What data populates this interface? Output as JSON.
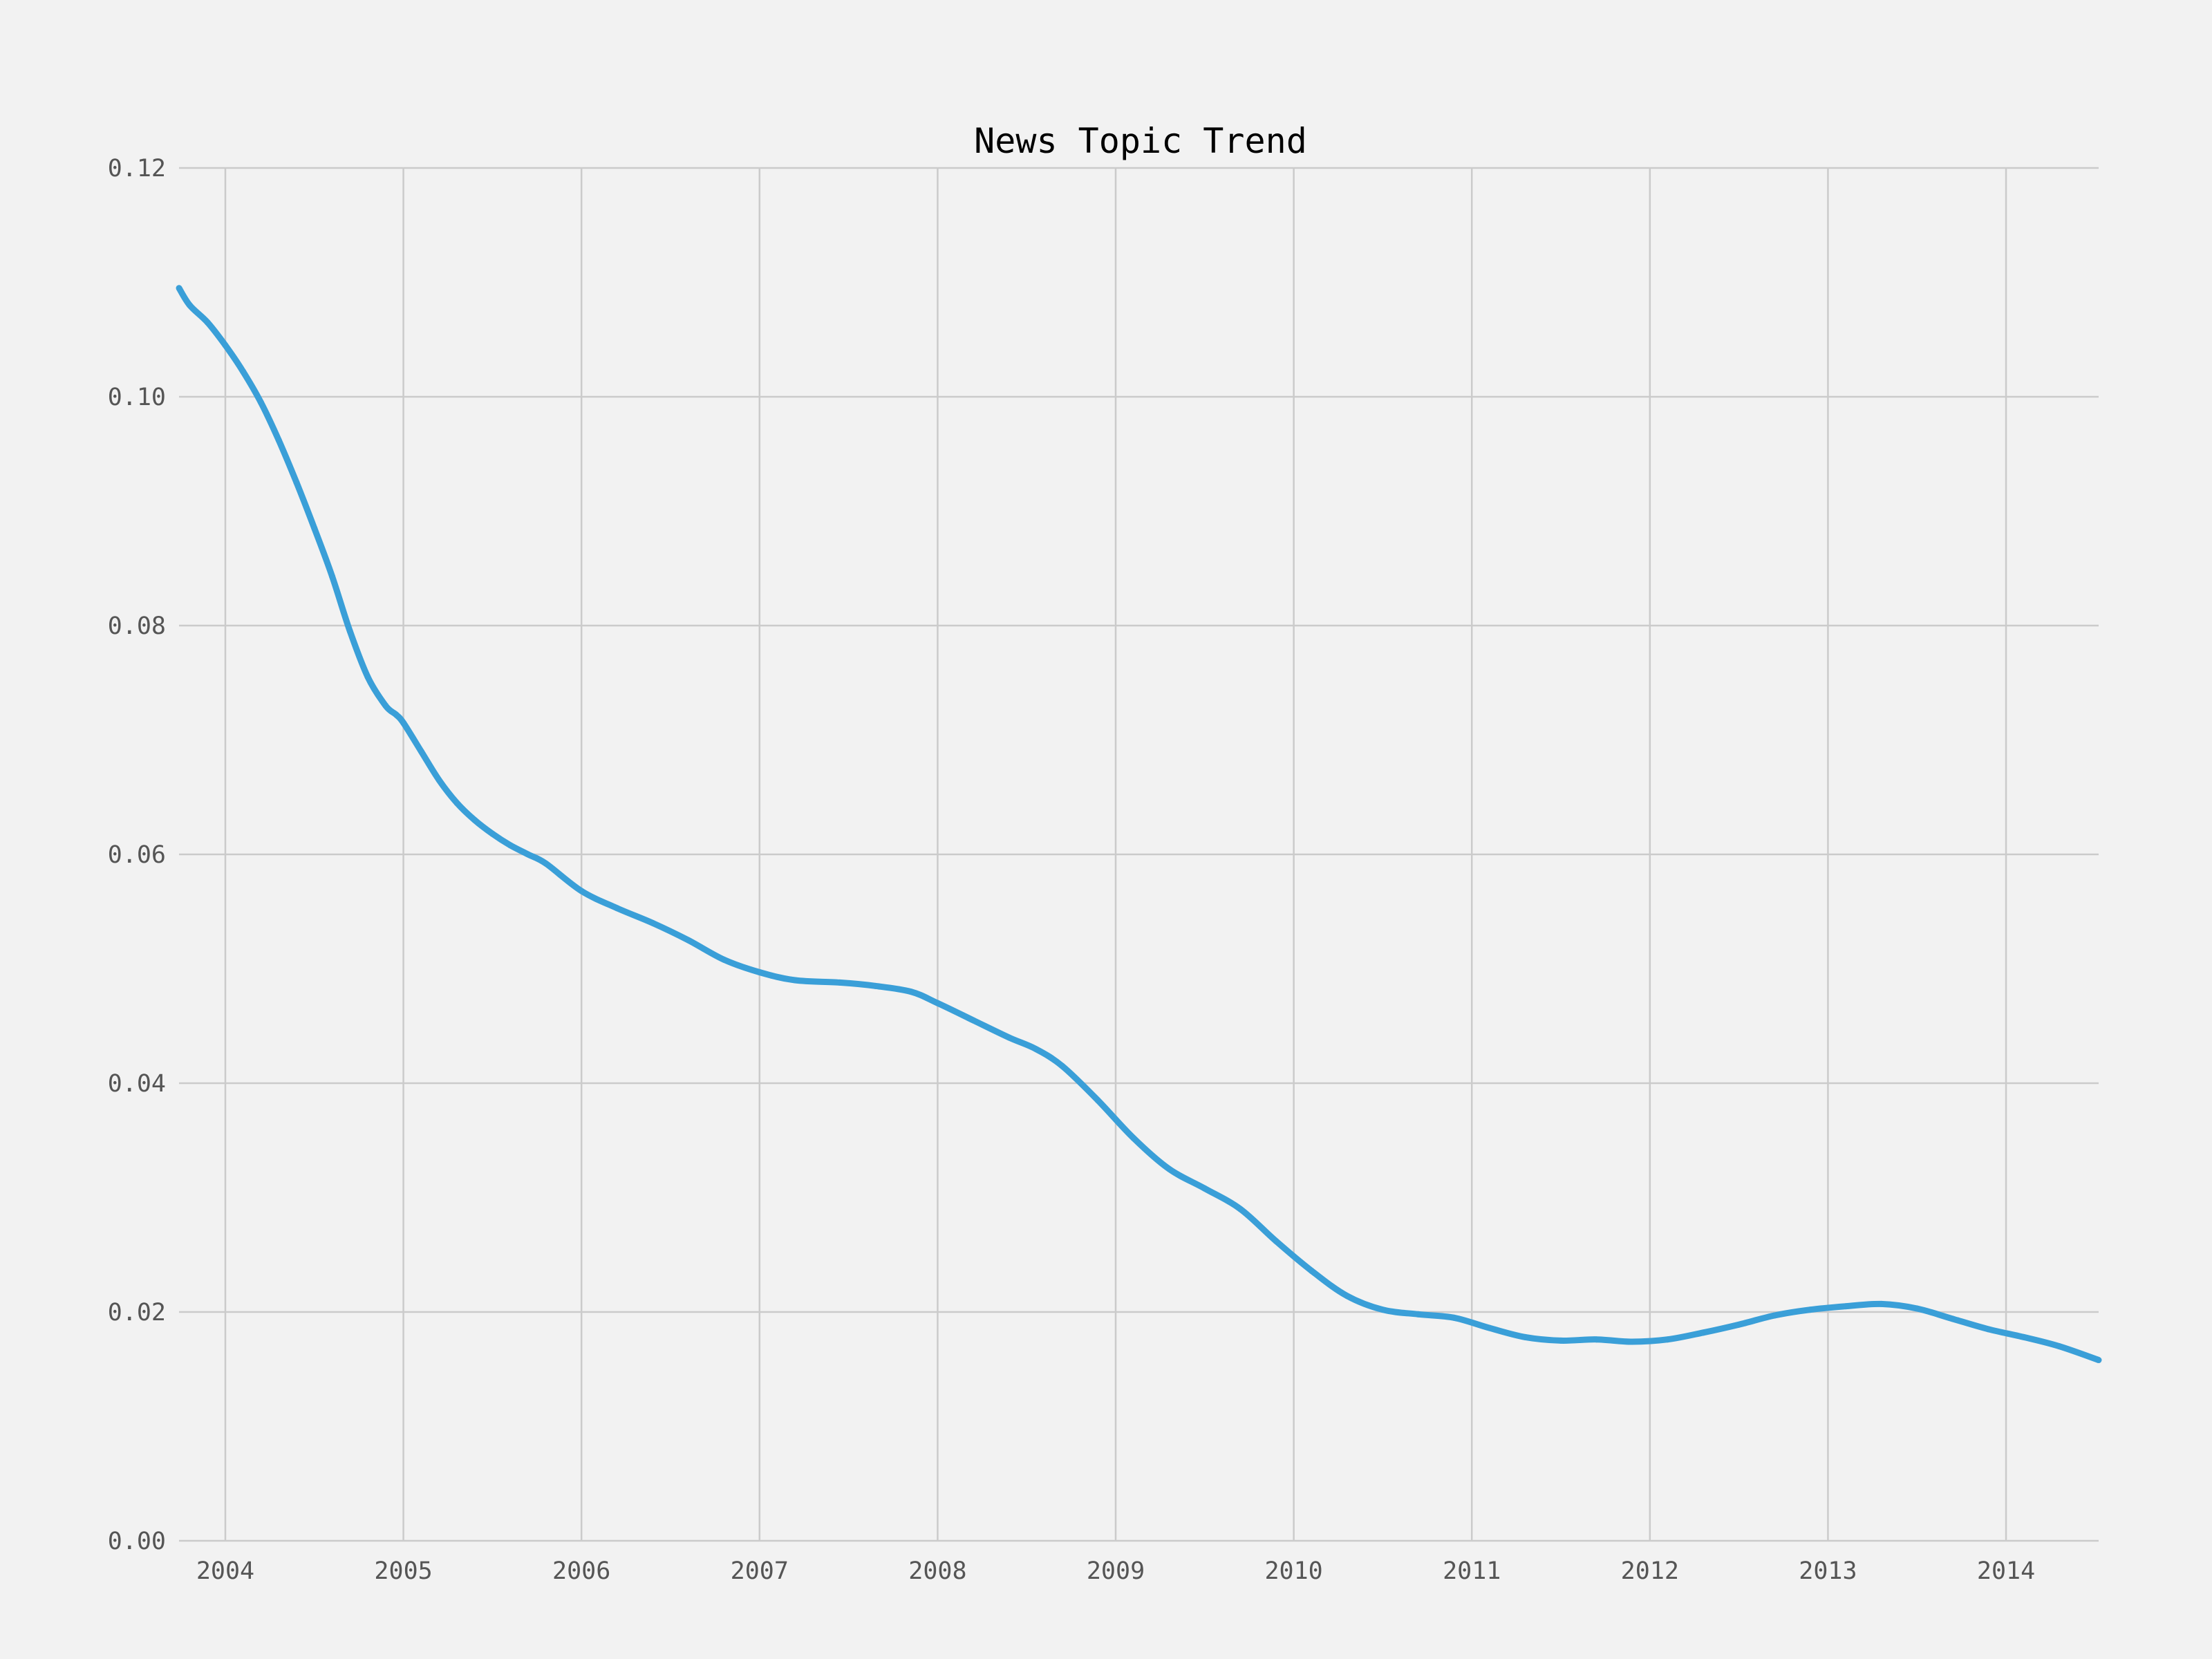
{
  "chart_data": {
    "type": "line",
    "title": "News Topic Trend",
    "xlabel": "",
    "ylabel": "",
    "xlim": [
      2003.74,
      2014.52
    ],
    "ylim": [
      0,
      0.12
    ],
    "grid": true,
    "x_ticks": [
      "2004",
      "2005",
      "2006",
      "2007",
      "2008",
      "2009",
      "2010",
      "2011",
      "2012",
      "2013",
      "2014"
    ],
    "y_ticks": [
      "0.00",
      "0.02",
      "0.04",
      "0.06",
      "0.08",
      "0.10",
      "0.12"
    ],
    "series": [
      {
        "color": "#3a9fd8",
        "x": [
          2003.74,
          2003.8,
          2003.9,
          2004.0,
          2004.1,
          2004.2,
          2004.3,
          2004.4,
          2004.5,
          2004.6,
          2004.7,
          2004.8,
          2004.9,
          2004.96,
          2005.0,
          2005.1,
          2005.2,
          2005.3,
          2005.4,
          2005.5,
          2005.6,
          2005.7,
          2005.8,
          2006.0,
          2006.2,
          2006.4,
          2006.6,
          2006.8,
          2007.0,
          2007.2,
          2007.45,
          2007.65,
          2007.85,
          2008.0,
          2008.2,
          2008.4,
          2008.55,
          2008.7,
          2008.9,
          2009.1,
          2009.3,
          2009.5,
          2009.7,
          2009.9,
          2010.1,
          2010.3,
          2010.5,
          2010.7,
          2010.9,
          2011.1,
          2011.3,
          2011.5,
          2011.7,
          2011.9,
          2012.1,
          2012.3,
          2012.5,
          2012.7,
          2012.9,
          2013.1,
          2013.3,
          2013.5,
          2013.7,
          2013.9,
          2014.1,
          2014.3,
          2014.52
        ],
        "y": [
          0.1095,
          0.108,
          0.1065,
          0.1045,
          0.1022,
          0.0995,
          0.0962,
          0.0925,
          0.0885,
          0.0843,
          0.0795,
          0.0755,
          0.073,
          0.0722,
          0.0715,
          0.069,
          0.0665,
          0.0645,
          0.063,
          0.0618,
          0.0608,
          0.06,
          0.0592,
          0.0568,
          0.0553,
          0.054,
          0.0525,
          0.0508,
          0.0497,
          0.049,
          0.0488,
          0.0485,
          0.048,
          0.047,
          0.0455,
          0.044,
          0.043,
          0.0415,
          0.0385,
          0.0352,
          0.0325,
          0.0308,
          0.029,
          0.0262,
          0.0236,
          0.0214,
          0.0202,
          0.0198,
          0.0195,
          0.0186,
          0.0178,
          0.0175,
          0.0176,
          0.0174,
          0.0176,
          0.0182,
          0.0189,
          0.0197,
          0.0202,
          0.0205,
          0.0207,
          0.0203,
          0.0194,
          0.0185,
          0.0178,
          0.017,
          0.0158
        ]
      }
    ]
  }
}
